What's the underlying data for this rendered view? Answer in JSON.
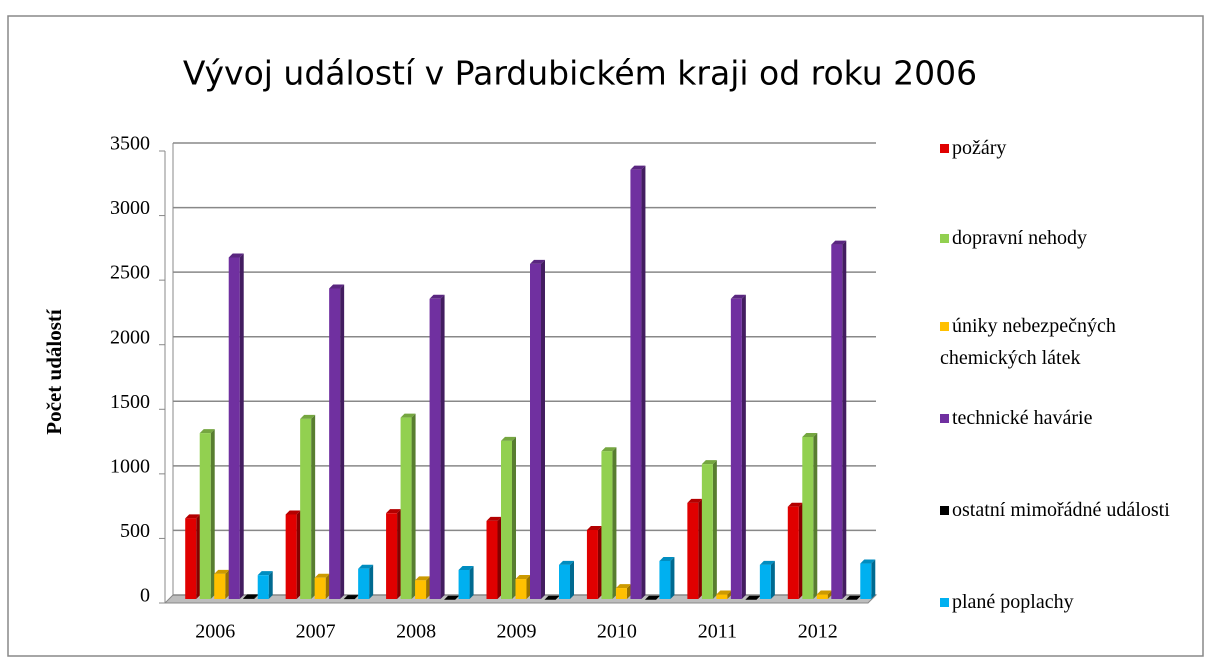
{
  "chart_data": {
    "type": "bar3d",
    "title": "Vývoj událostí v Pardubickém kraji od roku 2006",
    "y_label": "Počet událostí",
    "categories": [
      "2006",
      "2007",
      "2008",
      "2009",
      "2010",
      "2011",
      "2012"
    ],
    "series": [
      {
        "name": "požáry",
        "color": "#e00000",
        "values": [
          640,
          670,
          680,
          620,
          550,
          760,
          730
        ]
      },
      {
        "name": "dopravní nehody",
        "color": "#92d050",
        "values": [
          1300,
          1410,
          1420,
          1240,
          1160,
          1060,
          1270
        ]
      },
      {
        "name": "úniky nebezpečných chemických látek",
        "color": "#ffc000",
        "values": [
          210,
          180,
          160,
          170,
          100,
          50,
          50
        ]
      },
      {
        "name": "technické havárie",
        "color": "#7030a0",
        "values": [
          2660,
          2420,
          2340,
          2610,
          3340,
          2340,
          2760
        ]
      },
      {
        "name": "ostatní mimořádné události",
        "color": "#000000",
        "values": [
          20,
          15,
          10,
          10,
          10,
          10,
          10
        ]
      },
      {
        "name": "plané poplachy",
        "color": "#00b0f0",
        "values": [
          200,
          250,
          240,
          280,
          310,
          280,
          290
        ]
      }
    ],
    "ylim": [
      0,
      3500
    ],
    "yticks": [
      0,
      500,
      1000,
      1500,
      2000,
      2500,
      3000,
      3500
    ],
    "grid": true,
    "legend": "right"
  }
}
